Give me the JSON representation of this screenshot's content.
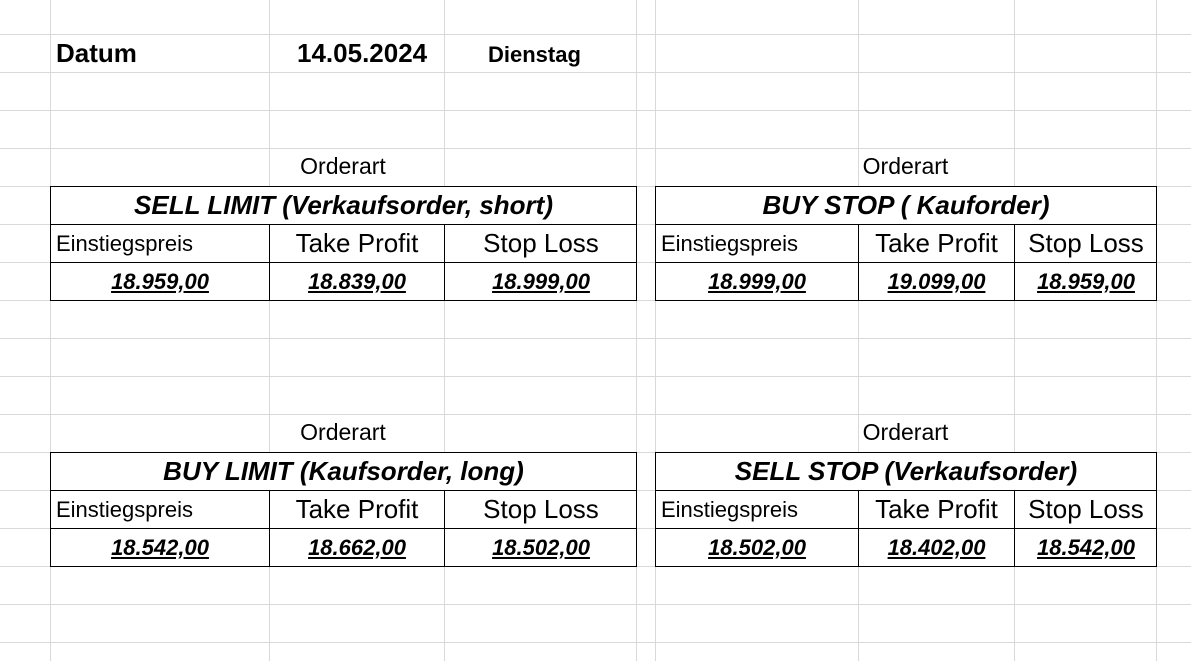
{
  "header": {
    "datum_label": "Datum",
    "date": "14.05.2024",
    "weekday": "Dienstag"
  },
  "orders": [
    {
      "orderart_label": "Orderart",
      "title": "SELL LIMIT (Verkaufsorder, short)",
      "columns": [
        "Einstiegspreis",
        "Take Profit",
        "Stop Loss"
      ],
      "values": [
        "18.959,00",
        "18.839,00",
        "18.999,00"
      ]
    },
    {
      "orderart_label": "Orderart",
      "title": "BUY STOP ( Kauforder)",
      "columns": [
        "Einstiegspreis",
        "Take Profit",
        "Stop Loss"
      ],
      "values": [
        "18.999,00",
        "19.099,00",
        "18.959,00"
      ]
    },
    {
      "orderart_label": "Orderart",
      "title": "BUY LIMIT (Kaufsorder, long)",
      "columns": [
        "Einstiegspreis",
        "Take Profit",
        "Stop Loss"
      ],
      "values": [
        "18.542,00",
        "18.662,00",
        "18.502,00"
      ]
    },
    {
      "orderart_label": "Orderart",
      "title": "SELL STOP (Verkaufsorder)",
      "columns": [
        "Einstiegspreis",
        "Take Profit",
        "Stop Loss"
      ],
      "values": [
        "18.502,00",
        "18.402,00",
        "18.542,00"
      ]
    }
  ]
}
